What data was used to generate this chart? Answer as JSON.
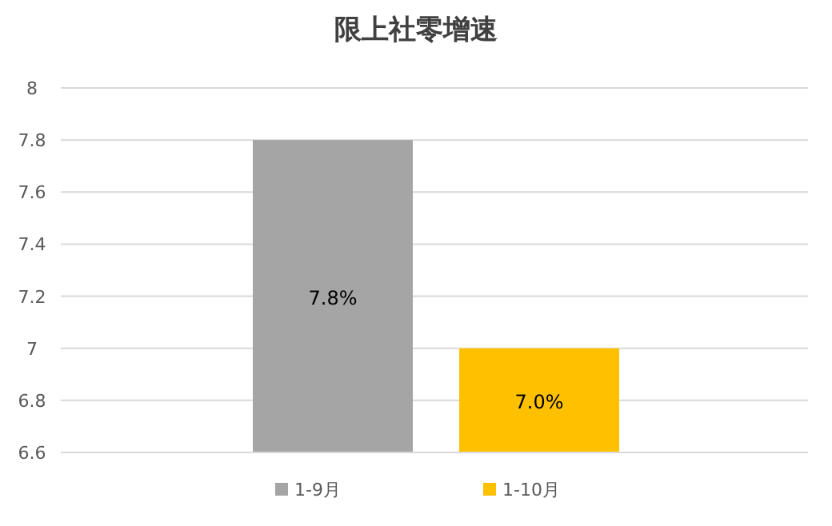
{
  "chart_data": {
    "type": "bar",
    "title": "限上社零增速",
    "categories": [
      null
    ],
    "series": [
      {
        "name": "1-9月",
        "color": "#a5a5a5",
        "values": [
          7.8
        ],
        "value_labels": [
          "7.8%"
        ]
      },
      {
        "name": "1-10月",
        "color": "#ffc000",
        "values": [
          7.0
        ],
        "value_labels": [
          "7.0%"
        ]
      }
    ],
    "ylim": [
      6.6,
      8
    ],
    "yticks": [
      6.6,
      6.8,
      7,
      7.2,
      7.4,
      7.6,
      7.8,
      8
    ],
    "grid": "y",
    "legend": "bottom"
  }
}
